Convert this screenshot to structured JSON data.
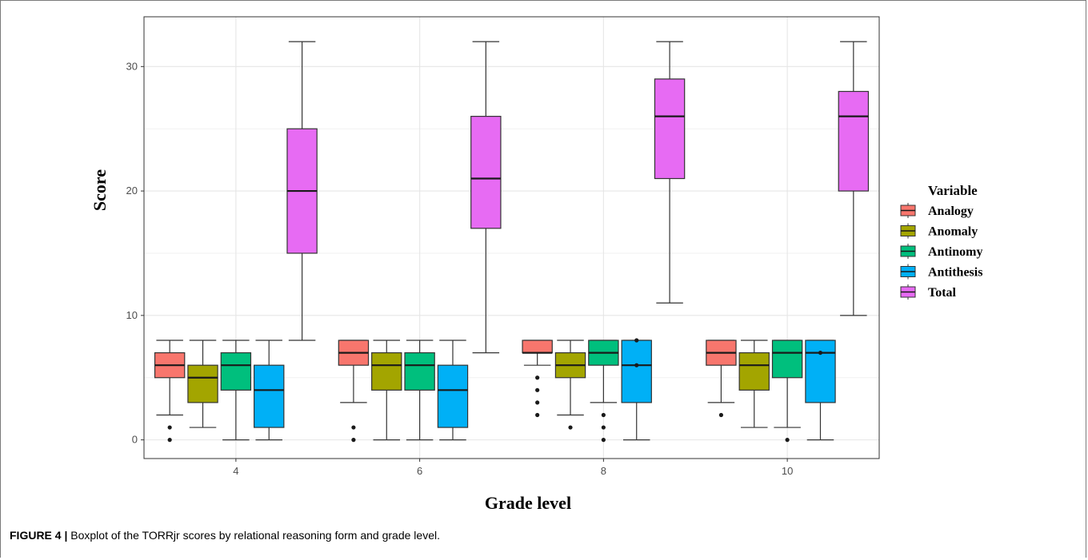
{
  "caption": {
    "label": "FIGURE 4 |",
    "text": "Boxplot of the TORRjr scores by relational reasoning form and grade level."
  },
  "chart_data": {
    "type": "boxplot",
    "title": "",
    "xlabel": "Grade level",
    "ylabel": "Score",
    "ylim": [
      -1.5,
      34
    ],
    "yticks": [
      0,
      10,
      20,
      30
    ],
    "categories": [
      "4",
      "6",
      "8",
      "10"
    ],
    "grid": true,
    "legend": {
      "title": "Variable",
      "placement": "right"
    },
    "series": [
      {
        "name": "Analogy",
        "color": "#F8766D",
        "boxes": [
          {
            "min": 2,
            "q1": 5,
            "median": 6,
            "q3": 7,
            "max": 8,
            "outliers": [
              1,
              0
            ]
          },
          {
            "min": 3,
            "q1": 6,
            "median": 7,
            "q3": 8,
            "max": 8,
            "outliers": [
              1,
              0
            ]
          },
          {
            "min": 6,
            "q1": 7,
            "median": 7,
            "q3": 8,
            "max": 8,
            "outliers": [
              5,
              4,
              3,
              2
            ]
          },
          {
            "min": 3,
            "q1": 6,
            "median": 7,
            "q3": 8,
            "max": 8,
            "outliers": [
              2
            ]
          }
        ]
      },
      {
        "name": "Anomaly",
        "color": "#A3A500",
        "boxes": [
          {
            "min": 1,
            "q1": 3,
            "median": 5,
            "q3": 6,
            "max": 8,
            "outliers": []
          },
          {
            "min": 0,
            "q1": 4,
            "median": 6,
            "q3": 7,
            "max": 8,
            "outliers": []
          },
          {
            "min": 2,
            "q1": 5,
            "median": 6,
            "q3": 7,
            "max": 8,
            "outliers": [
              1
            ]
          },
          {
            "min": 1,
            "q1": 4,
            "median": 6,
            "q3": 7,
            "max": 8,
            "outliers": []
          }
        ]
      },
      {
        "name": "Antinomy",
        "color": "#00BF7D",
        "boxes": [
          {
            "min": 0,
            "q1": 4,
            "median": 6,
            "q3": 7,
            "max": 8,
            "outliers": []
          },
          {
            "min": 0,
            "q1": 4,
            "median": 6,
            "q3": 7,
            "max": 8,
            "outliers": []
          },
          {
            "min": 3,
            "q1": 6,
            "median": 7,
            "q3": 8,
            "max": 8,
            "outliers": [
              2,
              1,
              0
            ]
          },
          {
            "min": 1,
            "q1": 5,
            "median": 7,
            "q3": 8,
            "max": 8,
            "outliers": [
              0
            ]
          }
        ]
      },
      {
        "name": "Antithesis",
        "color": "#00B0F6",
        "boxes": [
          {
            "min": 0,
            "q1": 1,
            "median": 4,
            "q3": 6,
            "max": 8,
            "outliers": []
          },
          {
            "min": 0,
            "q1": 1,
            "median": 4,
            "q3": 6,
            "max": 8,
            "outliers": []
          },
          {
            "min": 0,
            "q1": 3,
            "median": 6,
            "q3": 8,
            "max": 8,
            "outliers": [
              8,
              6
            ]
          },
          {
            "min": 0,
            "q1": 3,
            "median": 7,
            "q3": 8,
            "max": 8,
            "outliers": [
              7
            ]
          }
        ]
      },
      {
        "name": "Total",
        "color": "#E76BF3",
        "boxes": [
          {
            "min": 8,
            "q1": 15,
            "median": 20,
            "q3": 25,
            "max": 32,
            "outliers": []
          },
          {
            "min": 7,
            "q1": 17,
            "median": 21,
            "q3": 26,
            "max": 32,
            "outliers": []
          },
          {
            "min": 11,
            "q1": 21,
            "median": 26,
            "q3": 29,
            "max": 32,
            "outliers": []
          },
          {
            "min": 10,
            "q1": 20,
            "median": 26,
            "q3": 28,
            "max": 32,
            "outliers": []
          }
        ]
      }
    ]
  }
}
